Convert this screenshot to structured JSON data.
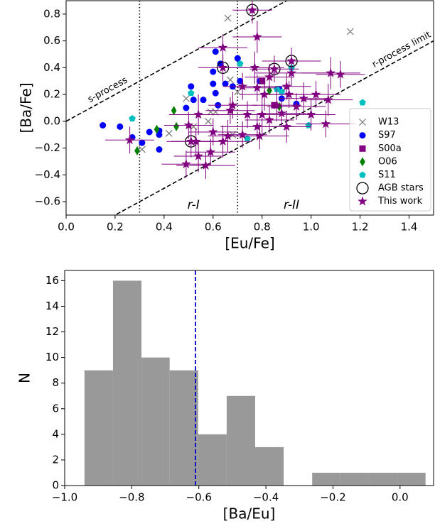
{
  "chart_data": [
    {
      "type": "scatter",
      "xlabel": "[Eu/Fe]",
      "ylabel": "[Ba/Fe]",
      "xlim": [
        0,
        1.5
      ],
      "ylim": [
        -0.7,
        0.9
      ],
      "xticks": [
        {
          "value": 0,
          "label": "0.0"
        },
        0.2,
        0.4,
        0.6,
        0.8,
        {
          "value": 1,
          "label": "1.0"
        },
        1.2,
        1.4
      ],
      "yticks": [
        {
          "value": -0.6,
          "label": "−0.6"
        },
        {
          "value": -0.4,
          "label": "−0.4"
        },
        {
          "value": -0.2,
          "label": "−0.2"
        },
        {
          "value": 0,
          "label": "0.0"
        },
        0.2,
        0.4,
        0.6,
        0.8
      ],
      "legend": "lower right",
      "reference_lines": [
        {
          "slope": 1,
          "intercept": 0,
          "label": "s-process"
        },
        {
          "slope": 1,
          "intercept": -0.9,
          "label": "r-process limit"
        }
      ],
      "vertical_lines": [
        {
          "x": 0.3,
          "label": "r-I"
        },
        {
          "x": 0.7,
          "label": "r-II"
        }
      ],
      "series": [
        {
          "name": "W13",
          "color": "#808080",
          "marker": "x",
          "x": [
            0.66,
            1.16,
            0.52,
            0.42,
            0.49,
            0.58,
            0.61,
            0.59,
            0.68,
            0.31,
            0.67,
            0.7
          ],
          "values": [
            0.77,
            0.67,
            -0.04,
            -0.09,
            0.17,
            0.0,
            0.07,
            0.07,
            -0.1,
            -0.21,
            0.31,
            0.22
          ]
        },
        {
          "name": "S97",
          "color": "#0000ff",
          "marker": "o",
          "x": [
            0.15,
            0.22,
            0.27,
            0.31,
            0.34,
            0.38,
            0.38,
            0.38,
            0.61,
            0.63,
            0.61,
            0.62,
            0.6,
            0.65,
            0.68,
            0.71,
            0.7,
            0.56,
            0.52,
            0.51,
            0.49,
            0.87,
            0.88,
            0.79,
            0.94,
            0.6
          ],
          "values": [
            -0.03,
            -0.04,
            -0.12,
            -0.16,
            -0.08,
            -0.1,
            -0.21,
            -0.07,
            0.52,
            0.43,
            0.21,
            0.12,
            0.28,
            0.28,
            0.26,
            0.3,
            0.47,
            0.16,
            0.16,
            0.26,
            0.1,
            0.24,
            0.17,
            0.3,
            0.13,
            0.37
          ]
        },
        {
          "name": "S00a",
          "color": "#800080",
          "marker": "s",
          "x": [
            0.8,
            0.85
          ],
          "values": [
            0.3,
            0.12
          ]
        },
        {
          "name": "O06",
          "color": "#008000",
          "marker": "d",
          "x": [
            0.29,
            0.37,
            0.45,
            0.44,
            0.83,
            0.87
          ],
          "values": [
            -0.22,
            -0.06,
            -0.04,
            0.08,
            0.23,
            0.11
          ]
        },
        {
          "name": "S11",
          "color": "#00bfbf",
          "marker": "p",
          "x": [
            0.27,
            0.51,
            0.71,
            0.74,
            0.86,
            0.92,
            0.99,
            1.21,
            0.88
          ],
          "values": [
            0.02,
            0.21,
            0.43,
            -0.13,
            0.24,
            0.4,
            -0.03,
            0.14,
            0.22
          ]
        },
        {
          "name": "AGB stars",
          "color": "#000000",
          "marker": "open-circle",
          "x": [
            0.51,
            0.64,
            0.76,
            0.85,
            0.92
          ],
          "values": [
            -0.15,
            0.4,
            0.83,
            0.39,
            0.45
          ]
        },
        {
          "name": "This work",
          "color": "#800080",
          "marker": "star",
          "x": [
            0.76,
            0.78,
            0.64,
            0.92,
            0.85,
            0.64,
            0.77,
            0.83,
            0.92,
            1.08,
            1.12,
            0.78,
            0.81,
            0.91,
            1.02,
            1.07,
            0.67,
            0.74,
            0.8,
            0.88,
            0.94,
            1.0,
            0.83,
            0.78,
            0.9,
            0.79,
            0.72,
            0.66,
            0.6,
            0.53,
            0.54,
            0.5,
            0.64,
            0.59,
            0.54,
            0.57,
            0.49,
            0.51,
            0.26,
            1.06,
            0.86,
            0.68,
            0.72,
            0.9,
            0.97
          ],
          "values": [
            0.83,
            0.63,
            0.55,
            0.45,
            0.39,
            0.4,
            0.4,
            0.33,
            0.36,
            0.36,
            0.35,
            0.25,
            0.2,
            0.2,
            0.2,
            0.16,
            0.08,
            0.05,
            0.05,
            0.06,
            0.11,
            0.05,
            0.01,
            -0.04,
            -0.04,
            -0.11,
            -0.1,
            -0.11,
            -0.08,
            -0.15,
            0.05,
            -0.03,
            -0.15,
            -0.23,
            -0.26,
            -0.33,
            -0.32,
            -0.15,
            -0.14,
            -0.02,
            0.12,
            0.12,
            0.26,
            0.26,
            0.17
          ],
          "xerr": [
            0.08,
            0.1,
            0.1,
            0.12,
            0.1,
            0.1,
            0.12,
            0.1,
            0.15,
            0.12,
            0.1,
            0.08,
            0.1,
            0.12,
            0.1,
            0.1,
            0.1,
            0.12,
            0.1,
            0.1,
            0.12,
            0.1,
            0.1,
            0.15,
            0.1,
            0.12,
            0.1,
            0.08,
            0.1,
            0.1,
            0.12,
            0.1,
            0.12,
            0.1,
            0.1,
            0.12,
            0.1,
            0.1,
            0.1,
            0.12,
            0.1,
            0.1,
            0.08,
            0.1,
            0.1
          ],
          "yerr": [
            0.1,
            0.12,
            0.1,
            0.1,
            0.1,
            0.1,
            0.12,
            0.1,
            0.1,
            0.12,
            0.1,
            0.1,
            0.12,
            0.1,
            0.1,
            0.12,
            0.1,
            0.1,
            0.15,
            0.1,
            0.1,
            0.12,
            0.1,
            0.1,
            0.12,
            0.1,
            0.1,
            0.12,
            0.1,
            0.1,
            0.15,
            0.1,
            0.12,
            0.1,
            0.12,
            0.1,
            0.1,
            0.12,
            0.1,
            0.1,
            0.12,
            0.1,
            0.1,
            0.1,
            0.12
          ]
        }
      ]
    },
    {
      "type": "histogram",
      "xlabel": "[Ba/Eu]",
      "ylabel": "N",
      "xlim": [
        -1.0,
        0.1
      ],
      "ylim": [
        0,
        16.8
      ],
      "xticks": [
        {
          "value": -1,
          "label": "−1.0"
        },
        {
          "value": -0.8,
          "label": "−0.8"
        },
        {
          "value": -0.6,
          "label": "−0.6"
        },
        {
          "value": -0.4,
          "label": "−0.4"
        },
        {
          "value": -0.2,
          "label": "−0.2"
        },
        {
          "value": 0,
          "label": "0.0"
        }
      ],
      "yticks": [
        0,
        2,
        4,
        6,
        8,
        10,
        12,
        14,
        16
      ],
      "bins": [
        -0.941,
        -0.856,
        -0.771,
        -0.687,
        -0.602,
        -0.517,
        -0.432,
        -0.347,
        -0.262,
        -0.178,
        -0.093,
        -0.008,
        0.076
      ],
      "values": [
        9,
        16,
        10,
        9,
        4,
        7,
        3,
        0,
        1,
        1,
        1,
        1
      ],
      "color": "#999999",
      "mean_line": {
        "x": -0.61,
        "color": "#0000cc"
      }
    }
  ]
}
